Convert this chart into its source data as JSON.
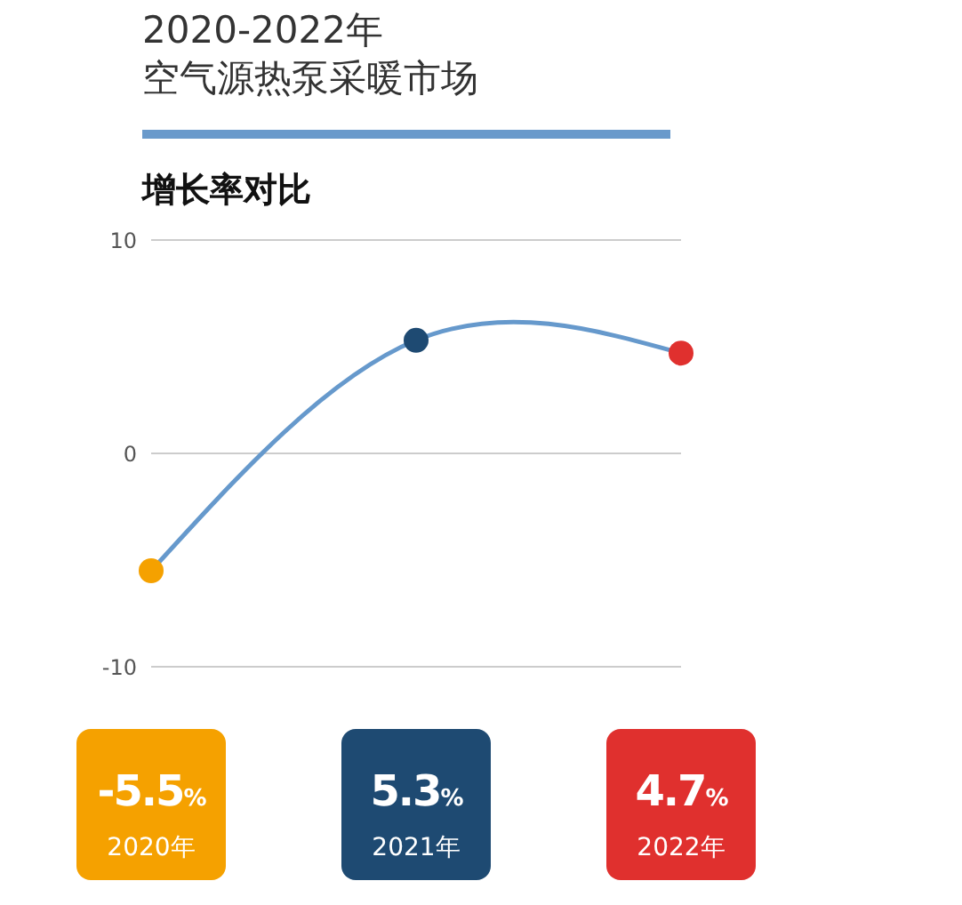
{
  "chart_data": {
    "type": "line",
    "title": "2020-2022年",
    "subtitle": "空气源热泵采暖市场",
    "annotations": [
      "增长率对比"
    ],
    "categories": [
      "2020年",
      "2021年",
      "2022年"
    ],
    "series": [
      {
        "color": "#6699cc",
        "colors": [
          "#f5a100",
          "#1e4a72",
          "#e0302e"
        ],
        "values": [
          -5.5,
          5.3,
          4.7
        ],
        "value_labels": [
          "-5.5%",
          "5.3%",
          "4.7%"
        ]
      }
    ],
    "ylim": [
      -10,
      10
    ],
    "yticks": [
      -10,
      0,
      10
    ],
    "grid": "y",
    "marker": "circle",
    "line_style": "solid"
  }
}
